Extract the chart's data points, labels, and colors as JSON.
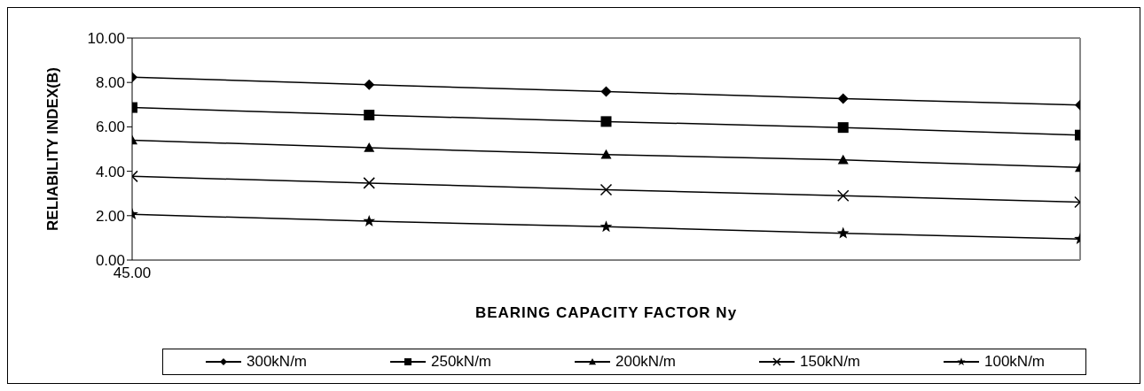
{
  "chart_data": {
    "type": "line",
    "xlabel": "BEARING  CAPACITY  FACTOR Ny",
    "ylabel": "RELIABILITY  INDEX(B)",
    "categories": [
      "45.00",
      null,
      null,
      null,
      null
    ],
    "ylim": [
      0,
      10
    ],
    "yticks": [
      {
        "value": 0,
        "label": "0.00"
      },
      {
        "value": 2,
        "label": "2.00"
      },
      {
        "value": 4,
        "label": "4.00"
      },
      {
        "value": 6,
        "label": "6.00"
      },
      {
        "value": 8,
        "label": "8.00"
      },
      {
        "value": 10,
        "label": "10.00"
      }
    ],
    "grid": false,
    "legend": "bottom",
    "line_style": "solid",
    "series": [
      {
        "name": "300kN/m",
        "color": "#000000",
        "marker": "diamond",
        "values": [
          8.24,
          7.9,
          7.59,
          7.27,
          6.98
        ]
      },
      {
        "name": "250kN/m",
        "color": "#000000",
        "marker": "square",
        "values": [
          6.87,
          6.53,
          6.24,
          5.97,
          5.63
        ]
      },
      {
        "name": "200kN/m",
        "color": "#000000",
        "marker": "triangle",
        "values": [
          5.4,
          5.06,
          4.75,
          4.51,
          4.17
        ]
      },
      {
        "name": "150kN/m",
        "color": "#000000",
        "marker": "cross",
        "values": [
          3.77,
          3.47,
          3.17,
          2.9,
          2.61
        ]
      },
      {
        "name": "100kN/m",
        "color": "#000000",
        "marker": "star",
        "values": [
          2.06,
          1.75,
          1.5,
          1.21,
          0.95
        ]
      }
    ]
  }
}
